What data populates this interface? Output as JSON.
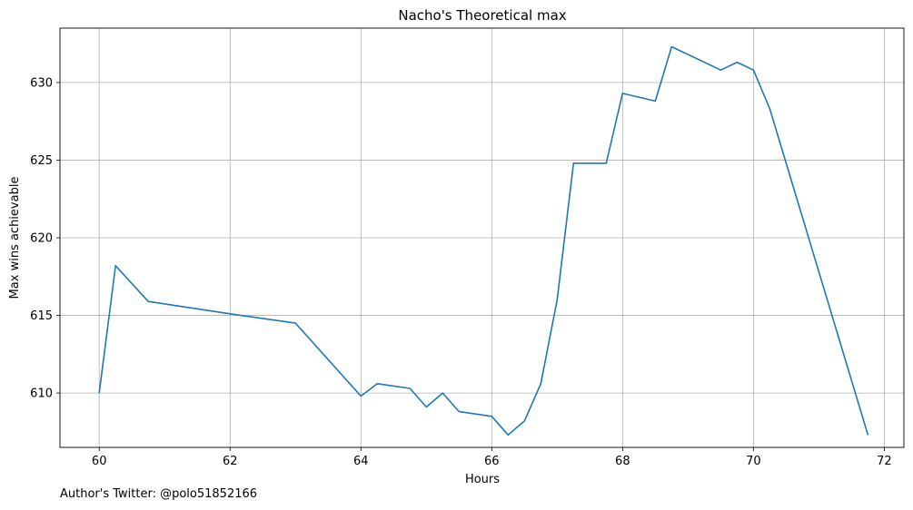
{
  "chart_data": {
    "type": "line",
    "title": "Nacho's Theoretical max",
    "xlabel": "Hours",
    "ylabel": "Max wins achievable",
    "xlim": [
      59.4,
      72.3
    ],
    "ylim": [
      606.5,
      633.5
    ],
    "xticks": [
      60,
      62,
      64,
      66,
      68,
      70,
      72
    ],
    "yticks": [
      610,
      615,
      620,
      625,
      630
    ],
    "grid": true,
    "line_color": "#1f77b4",
    "series": [
      {
        "x": [
          60,
          60.25,
          60.75,
          62,
          63,
          64,
          64.25,
          64.75,
          65,
          65.25,
          65.5,
          66,
          66.25,
          66.5,
          66.75,
          67,
          67.25,
          67.75,
          68,
          68.5,
          68.75,
          69.5,
          69.75,
          70,
          70.25,
          71.75
        ],
        "y": [
          610,
          618.2,
          615.9,
          615.1,
          614.5,
          609.8,
          610.6,
          610.3,
          609.1,
          610,
          608.8,
          608.5,
          607.3,
          608.2,
          610.6,
          616,
          624.8,
          624.8,
          629.3,
          628.8,
          632.3,
          630.8,
          631.3,
          630.8,
          628.3,
          607.3
        ]
      }
    ]
  },
  "footer": {
    "note": "Author's Twitter: @polo51852166"
  }
}
